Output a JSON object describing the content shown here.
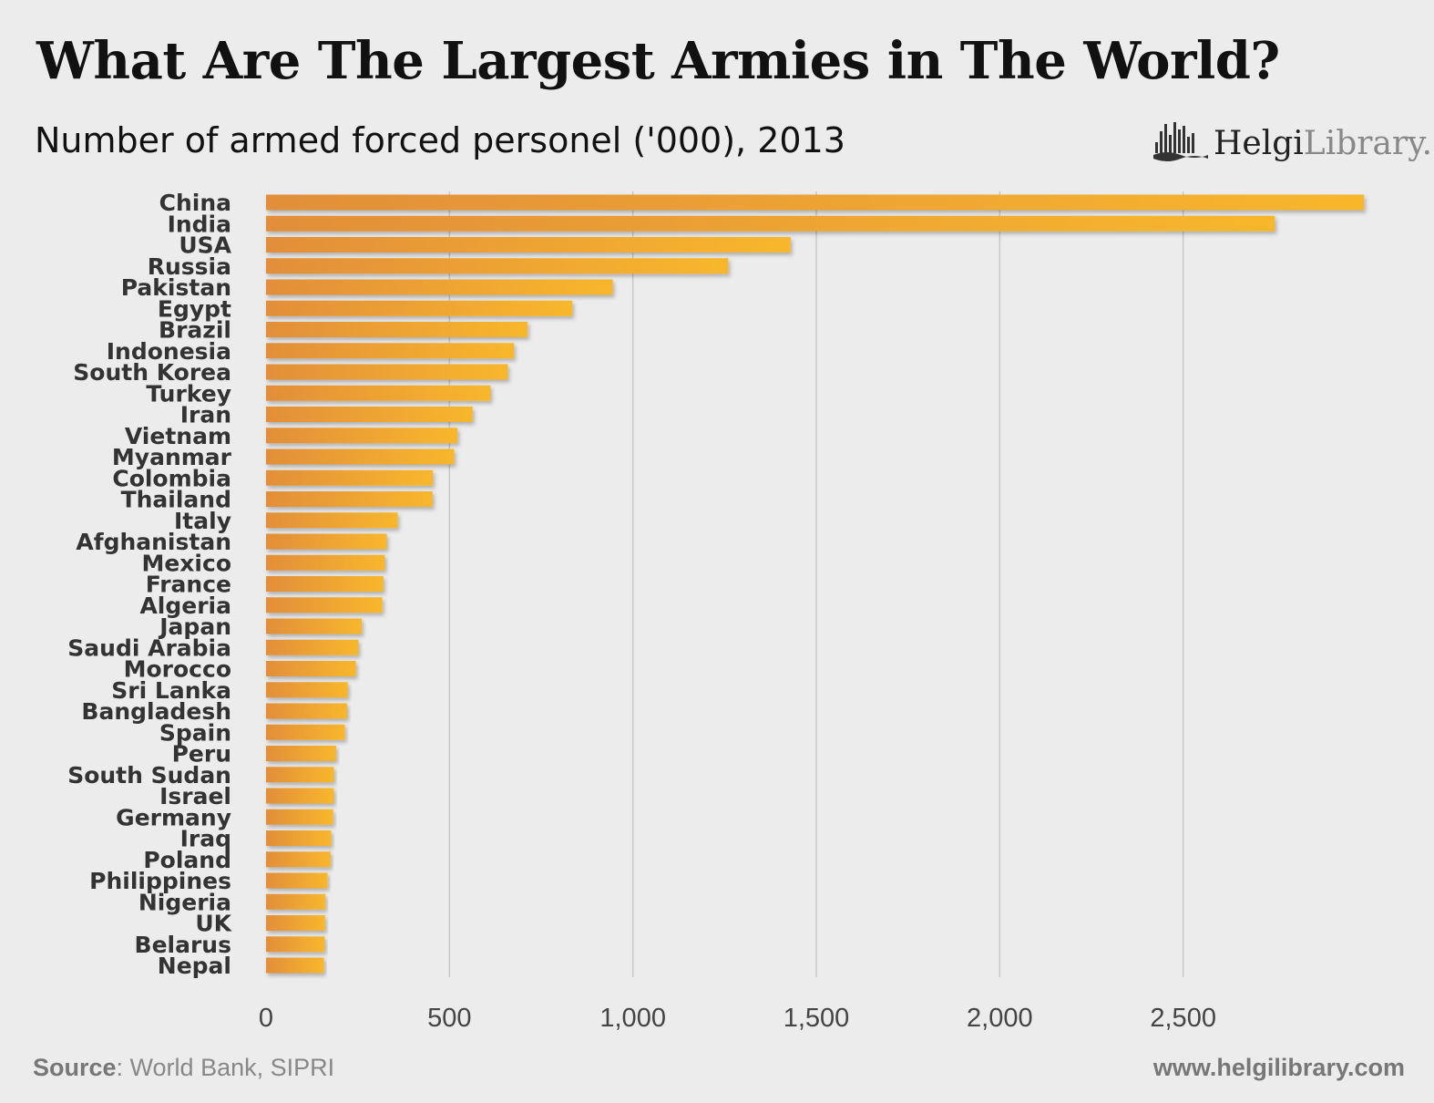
{
  "title": "What Are The Largest Armies in The World?",
  "subtitle": "Number of armed forced personel ('000), 2013",
  "logo": {
    "brand_a": "Helgi",
    "brand_b": "Library.",
    "icon": "helgi-library-logo-icon"
  },
  "footer": {
    "source_label": "Source",
    "source_text": ": World Bank, SIPRI",
    "website": "www.helgilibrary.com"
  },
  "colors": {
    "bar_start": "#E28E3A",
    "bar_end": "#F8B72C",
    "grid": "#c8c8c8",
    "text": "#333333"
  },
  "chart_data": {
    "type": "bar",
    "orientation": "horizontal",
    "categories": [
      "China",
      "India",
      "USA",
      "Russia",
      "Pakistan",
      "Egypt",
      "Brazil",
      "Indonesia",
      "South Korea",
      "Turkey",
      "Iran",
      "Vietnam",
      "Myanmar",
      "Colombia",
      "Thailand",
      "Italy",
      "Afghanistan",
      "Mexico",
      "France",
      "Algeria",
      "Japan",
      "Saudi Arabia",
      "Morocco",
      "Sri Lanka",
      "Bangladesh",
      "Spain",
      "Peru",
      "South Sudan",
      "Israel",
      "Germany",
      "Iraq",
      "Poland",
      "Philippines",
      "Nigeria",
      "UK",
      "Belarus",
      "Nepal"
    ],
    "values": [
      2993,
      2750,
      1430,
      1260,
      945,
      835,
      713,
      676,
      659,
      612,
      563,
      522,
      513,
      455,
      454,
      359,
      329,
      324,
      320,
      317,
      261,
      252,
      245,
      223,
      221,
      215,
      191,
      185,
      185,
      183,
      178,
      176,
      168,
      162,
      161,
      160,
      158
    ],
    "xlim": [
      0,
      3000
    ],
    "xticks": [
      0,
      500,
      1000,
      1500,
      2000,
      2500
    ],
    "xtick_labels": [
      "0",
      "500",
      "1,000",
      "1,500",
      "2,000",
      "2,500"
    ],
    "grid": true,
    "legend": "none"
  }
}
